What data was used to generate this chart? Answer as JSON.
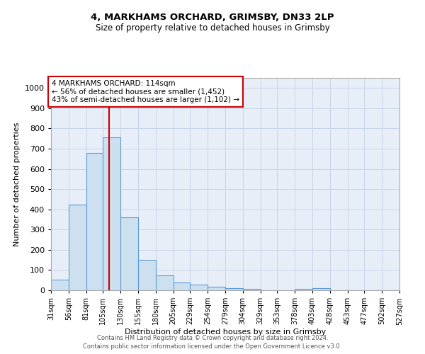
{
  "title": "4, MARKHAMS ORCHARD, GRIMSBY, DN33 2LP",
  "subtitle": "Size of property relative to detached houses in Grimsby",
  "xlabel": "Distribution of detached houses by size in Grimsby",
  "ylabel": "Number of detached properties",
  "bin_edges": [
    31,
    56,
    81,
    105,
    130,
    155,
    180,
    205,
    229,
    254,
    279,
    304,
    329,
    353,
    378,
    403,
    428,
    453,
    477,
    502,
    527
  ],
  "bar_heights": [
    52,
    425,
    680,
    755,
    360,
    150,
    75,
    40,
    28,
    18,
    11,
    8,
    0,
    0,
    8,
    10,
    0,
    0,
    0,
    0
  ],
  "bar_color": "#cce0f0",
  "bar_edge_color": "#5b9bd5",
  "bar_edge_width": 0.8,
  "grid_color": "#c8d4e8",
  "bg_color": "#e8eef8",
  "property_line_x": 114,
  "property_line_color": "#cc0000",
  "annotation_text": "4 MARKHAMS ORCHARD: 114sqm\n← 56% of detached houses are smaller (1,452)\n43% of semi-detached houses are larger (1,102) →",
  "annotation_box_edge_color": "#cc0000",
  "ylim": [
    0,
    1050
  ],
  "yticks": [
    0,
    100,
    200,
    300,
    400,
    500,
    600,
    700,
    800,
    900,
    1000
  ],
  "xtick_labels": [
    "31sqm",
    "56sqm",
    "81sqm",
    "105sqm",
    "130sqm",
    "155sqm",
    "180sqm",
    "205sqm",
    "229sqm",
    "254sqm",
    "279sqm",
    "304sqm",
    "329sqm",
    "353sqm",
    "378sqm",
    "403sqm",
    "428sqm",
    "453sqm",
    "477sqm",
    "502sqm",
    "527sqm"
  ],
  "title_fontsize": 9.5,
  "subtitle_fontsize": 8.5,
  "ylabel_fontsize": 8,
  "xlabel_fontsize": 8,
  "ytick_fontsize": 8,
  "xtick_fontsize": 7,
  "annotation_fontsize": 7.5,
  "footer_line1": "Contains HM Land Registry data © Crown copyright and database right 2024.",
  "footer_line2": "Contains public sector information licensed under the Open Government Licence v3.0.",
  "footer_fontsize": 6
}
